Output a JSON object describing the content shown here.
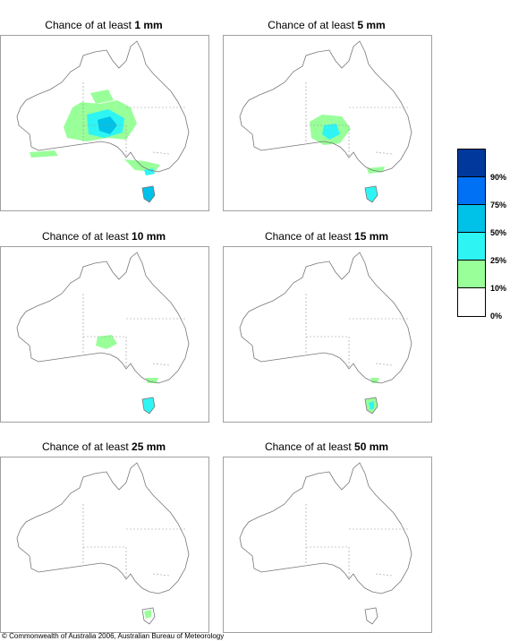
{
  "panels": [
    {
      "prefix": "Chance of at least ",
      "amount": "1 mm"
    },
    {
      "prefix": "Chance of at least ",
      "amount": "5 mm"
    },
    {
      "prefix": "Chance of at least ",
      "amount": "10 mm"
    },
    {
      "prefix": "Chance of at least ",
      "amount": "15 mm"
    },
    {
      "prefix": "Chance of at least ",
      "amount": "25 mm"
    },
    {
      "prefix": "Chance of at least ",
      "amount": "50 mm"
    }
  ],
  "legend": {
    "colors": [
      "#00389b",
      "#0071f4",
      "#00c1e8",
      "#2ef5f3",
      "#99ff99",
      "#ffffff"
    ],
    "labels": [
      "90%",
      "75%",
      "50%",
      "25%",
      "10%",
      "0%"
    ]
  },
  "copyright": "© Commonwealth of Australia 2006, Australian Bureau of Meteorology"
}
